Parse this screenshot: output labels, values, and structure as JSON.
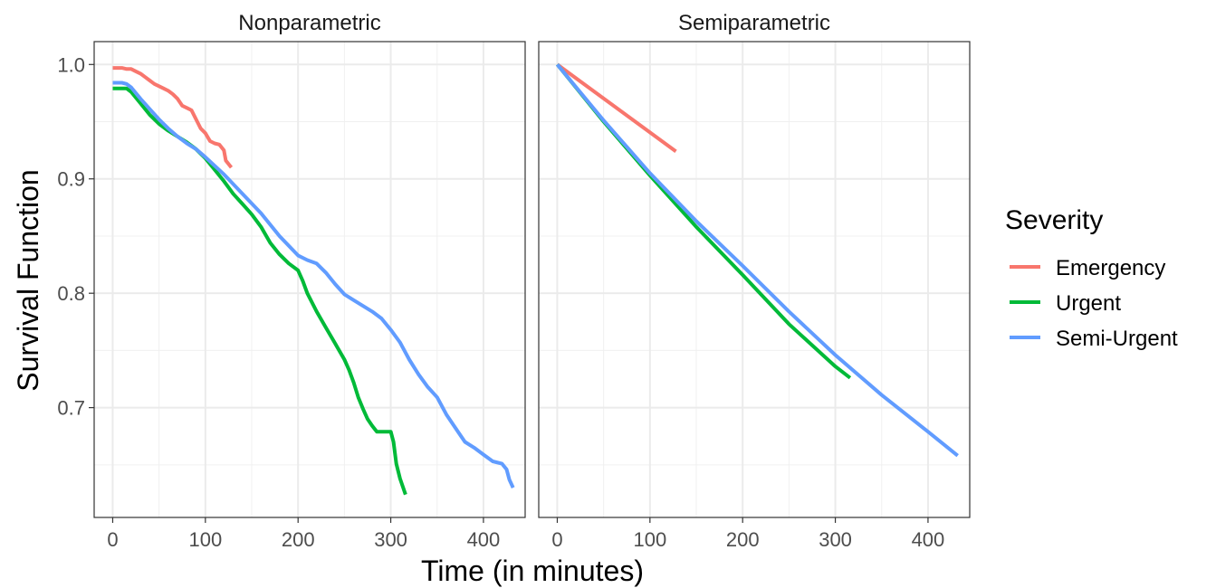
{
  "chart_data": {
    "type": "line",
    "xlabel": "Time (in minutes)",
    "ylabel": "Survival Function",
    "xlim": [
      -20,
      445
    ],
    "ylim": [
      0.604,
      1.02
    ],
    "x_ticks": [
      0,
      100,
      200,
      300,
      400
    ],
    "y_ticks": [
      0.7,
      0.8,
      0.9,
      1.0
    ],
    "y_tick_labels": [
      "0.7",
      "0.8",
      "0.9",
      "1.0"
    ],
    "grid": true,
    "legend": {
      "title": "Severity",
      "placement": "right",
      "entries": [
        {
          "name": "Emergency",
          "color": "#F8766D"
        },
        {
          "name": "Urgent",
          "color": "#00BA38"
        },
        {
          "name": "Semi-Urgent",
          "color": "#619CFF"
        }
      ]
    },
    "panels": [
      {
        "title": "Nonparametric",
        "series": [
          {
            "name": "Emergency",
            "color": "#F8766D",
            "x": [
              0,
              10,
              15,
              20,
              25,
              30,
              35,
              40,
              45,
              50,
              55,
              60,
              65,
              70,
              75,
              80,
              85,
              90,
              95,
              100,
              105,
              110,
              115,
              120,
              122,
              125,
              128
            ],
            "y": [
              0.997,
              0.997,
              0.996,
              0.996,
              0.994,
              0.992,
              0.989,
              0.986,
              0.983,
              0.981,
              0.979,
              0.977,
              0.974,
              0.97,
              0.964,
              0.962,
              0.96,
              0.952,
              0.944,
              0.94,
              0.933,
              0.931,
              0.93,
              0.925,
              0.916,
              0.913,
              0.91
            ]
          },
          {
            "name": "Urgent",
            "color": "#00BA38",
            "x": [
              0,
              10,
              15,
              20,
              30,
              40,
              50,
              60,
              70,
              80,
              90,
              100,
              110,
              120,
              130,
              140,
              150,
              160,
              170,
              180,
              190,
              200,
              205,
              210,
              220,
              230,
              240,
              250,
              255,
              260,
              265,
              270,
              275,
              280,
              285,
              290,
              295,
              300,
              303,
              306,
              310,
              316
            ],
            "y": [
              0.979,
              0.979,
              0.979,
              0.976,
              0.966,
              0.956,
              0.948,
              0.942,
              0.937,
              0.932,
              0.926,
              0.918,
              0.908,
              0.898,
              0.887,
              0.878,
              0.869,
              0.858,
              0.844,
              0.834,
              0.826,
              0.82,
              0.811,
              0.8,
              0.784,
              0.77,
              0.756,
              0.742,
              0.733,
              0.722,
              0.709,
              0.699,
              0.69,
              0.684,
              0.679,
              0.679,
              0.679,
              0.679,
              0.67,
              0.651,
              0.638,
              0.624
            ]
          },
          {
            "name": "Semi-Urgent",
            "color": "#619CFF",
            "x": [
              0,
              10,
              15,
              20,
              30,
              40,
              50,
              60,
              70,
              80,
              90,
              100,
              120,
              140,
              160,
              180,
              200,
              210,
              220,
              230,
              240,
              250,
              260,
              280,
              290,
              300,
              310,
              320,
              330,
              340,
              350,
              360,
              370,
              380,
              390,
              400,
              410,
              420,
              425,
              428,
              432
            ],
            "y": [
              0.984,
              0.984,
              0.983,
              0.98,
              0.97,
              0.961,
              0.952,
              0.944,
              0.937,
              0.931,
              0.926,
              0.919,
              0.904,
              0.887,
              0.87,
              0.85,
              0.833,
              0.829,
              0.826,
              0.818,
              0.808,
              0.799,
              0.794,
              0.784,
              0.778,
              0.768,
              0.757,
              0.742,
              0.729,
              0.718,
              0.709,
              0.694,
              0.682,
              0.67,
              0.665,
              0.659,
              0.653,
              0.651,
              0.646,
              0.637,
              0.63
            ]
          }
        ]
      },
      {
        "title": "Semiparametric",
        "series": [
          {
            "name": "Emergency",
            "color": "#F8766D",
            "x": [
              0,
              128
            ],
            "y": [
              1.0,
              0.924
            ]
          },
          {
            "name": "Urgent",
            "color": "#00BA38",
            "x": [
              0,
              50,
              100,
              150,
              200,
              250,
              300,
              316
            ],
            "y": [
              1.0,
              0.95,
              0.903,
              0.858,
              0.816,
              0.773,
              0.736,
              0.726
            ]
          },
          {
            "name": "Semi-Urgent",
            "color": "#619CFF",
            "x": [
              0,
              50,
              100,
              150,
              200,
              250,
              300,
              350,
              400,
              432
            ],
            "y": [
              1.0,
              0.951,
              0.905,
              0.863,
              0.824,
              0.784,
              0.746,
              0.711,
              0.679,
              0.658
            ]
          }
        ]
      }
    ]
  }
}
